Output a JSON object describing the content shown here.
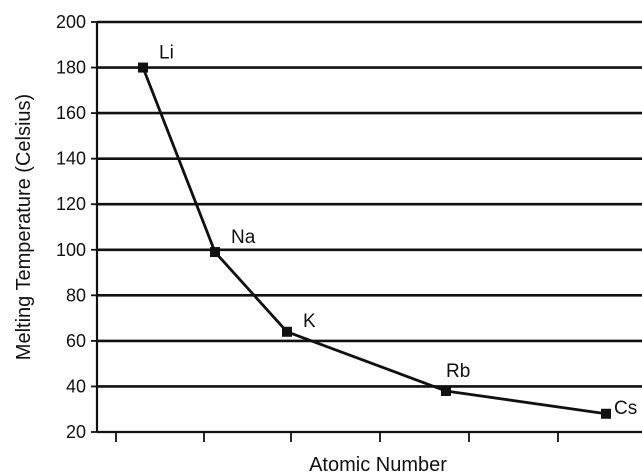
{
  "chart_data": {
    "type": "line",
    "title": "",
    "xlabel": "Atomic Number",
    "ylabel": "Melting Temperature (Celsius)",
    "ylim": [
      20,
      200
    ],
    "yticks": [
      20,
      40,
      60,
      80,
      100,
      120,
      140,
      160,
      180,
      200
    ],
    "x_tick_count": 6,
    "grid": "horizontal",
    "legend": "none",
    "series": [
      {
        "points": [
          {
            "label": "Li",
            "y": 180
          },
          {
            "label": "Na",
            "y": 99
          },
          {
            "label": "K",
            "y": 64
          },
          {
            "label": "Rb",
            "y": 38
          },
          {
            "label": "Cs",
            "y": 28
          }
        ]
      }
    ],
    "colors": {
      "line": "#111111",
      "grid": "#111111",
      "text": "#111111",
      "background": "#ffffff"
    }
  }
}
